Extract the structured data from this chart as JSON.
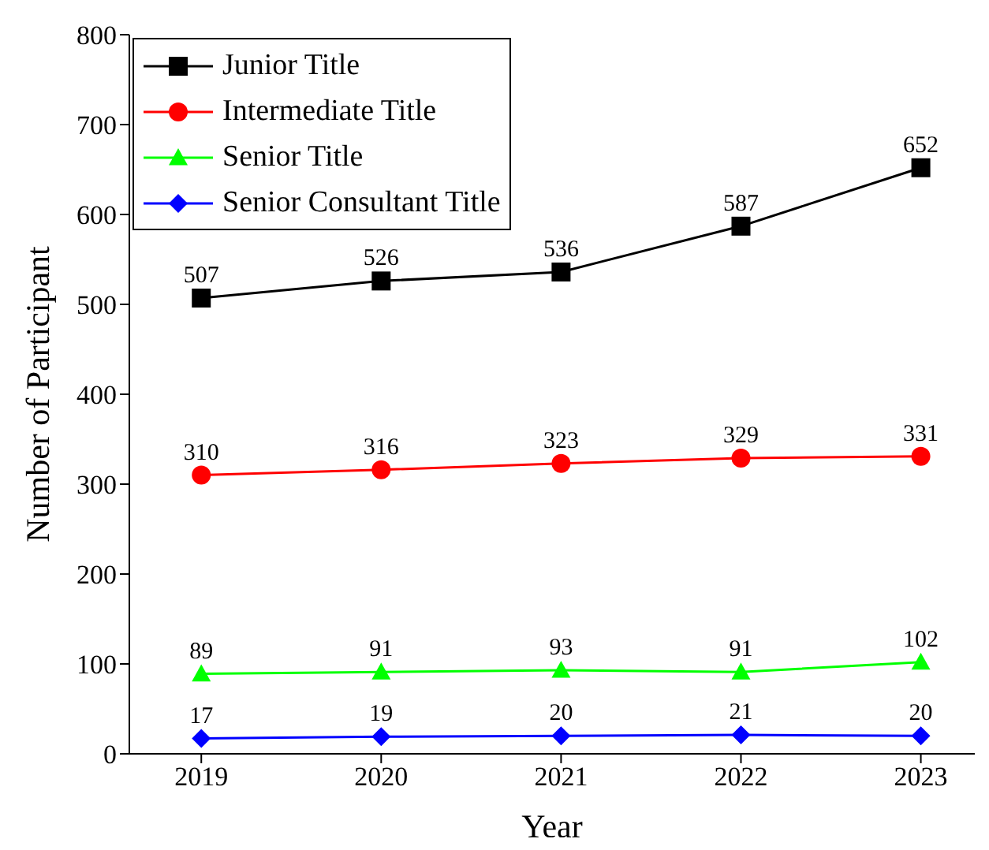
{
  "chart_data": {
    "type": "line",
    "xlabel": "Year",
    "ylabel": "Number of Participant",
    "x": [
      2019,
      2020,
      2021,
      2022,
      2023
    ],
    "xlim": [
      2018.6,
      2023.3
    ],
    "xticks": [
      2019,
      2020,
      2021,
      2022,
      2023
    ],
    "ylim": [
      0,
      800
    ],
    "yticks": [
      0,
      100,
      200,
      300,
      400,
      500,
      600,
      700,
      800
    ],
    "series": [
      {
        "name": "Junior Title",
        "color": "#000000",
        "marker": "square",
        "values": [
          507,
          526,
          536,
          587,
          652
        ]
      },
      {
        "name": "Intermediate Title",
        "color": "#ff0000",
        "marker": "circle",
        "values": [
          310,
          316,
          323,
          329,
          331
        ]
      },
      {
        "name": "Senior Title",
        "color": "#00ff00",
        "marker": "triangle",
        "values": [
          89,
          91,
          93,
          91,
          102
        ]
      },
      {
        "name": "Senior Consultant Title",
        "color": "#0000ff",
        "marker": "diamond",
        "values": [
          17,
          19,
          20,
          21,
          20
        ]
      }
    ],
    "data_labels": true,
    "legend": "top left",
    "grid": false,
    "line_style": "solid"
  }
}
